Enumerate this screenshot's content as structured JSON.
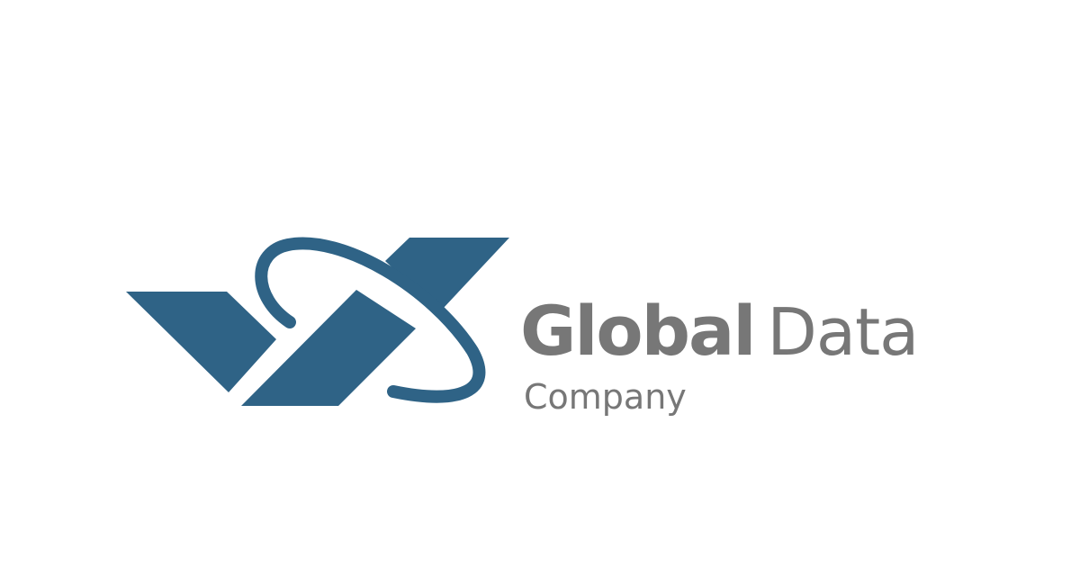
{
  "logo": {
    "mark_color": "#2f6386",
    "text_color": "#777777",
    "brand_primary": "Global",
    "brand_secondary": "Data",
    "tagline": "Company"
  }
}
